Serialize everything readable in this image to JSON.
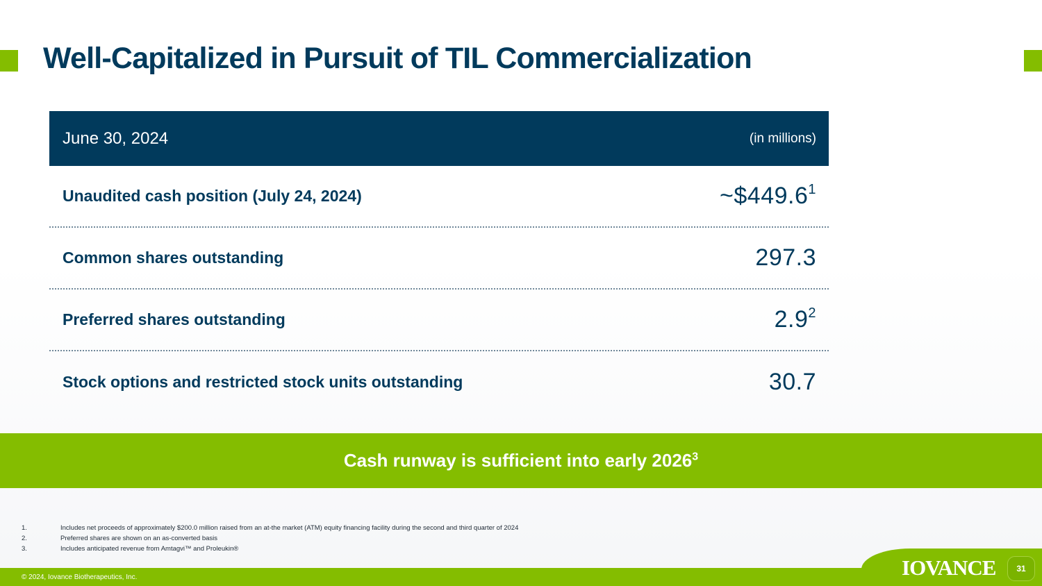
{
  "slide": {
    "title": "Well-Capitalized in Pursuit of TIL Commercialization",
    "page_number": "31"
  },
  "table": {
    "header_date": "June 30, 2024",
    "header_unit": "(in millions)",
    "rows": [
      {
        "label": "Unaudited cash position (July 24, 2024)",
        "value": "~$449.6",
        "footnote": "1"
      },
      {
        "label": "Common shares outstanding",
        "value": "297.3",
        "footnote": ""
      },
      {
        "label": "Preferred shares outstanding",
        "value": "2.9",
        "footnote": "2"
      },
      {
        "label": "Stock options and restricted stock units outstanding",
        "value": "30.7",
        "footnote": ""
      }
    ]
  },
  "banner": {
    "text": "Cash runway is sufficient into early 2026",
    "footnote": "3"
  },
  "footnotes": [
    {
      "num": "1.",
      "text": "Includes net proceeds of approximately $200.0 million raised from an at-the market (ATM) equity financing facility during the second and third quarter of 2024"
    },
    {
      "num": "2.",
      "text": "Preferred shares are shown on an as-converted basis"
    },
    {
      "num": "3.",
      "text": "Includes anticipated revenue from Amtagvi™ and Proleukin®"
    }
  ],
  "footer": {
    "copyright": "© 2024, Iovance Biotherapeutics, Inc.",
    "logo_text": "IOVANCE"
  },
  "colors": {
    "navy": "#013a5c",
    "green": "#84bd00"
  }
}
